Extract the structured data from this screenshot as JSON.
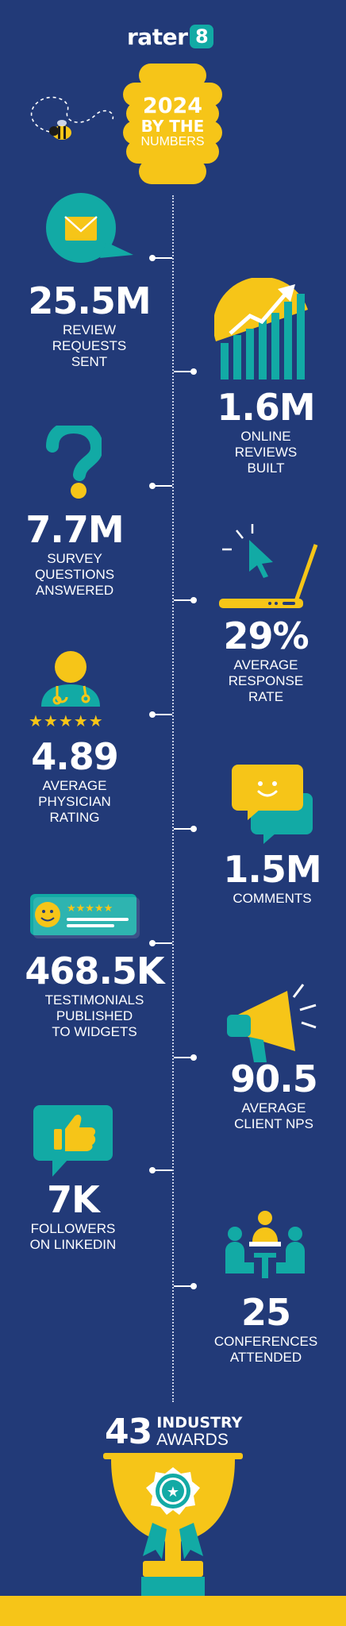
{
  "brand": {
    "name": "rater",
    "mark": "8"
  },
  "hero": {
    "line1": "2024",
    "line2": "BY THE",
    "line3": "NUMBERS"
  },
  "stats": [
    {
      "value": "25.5M",
      "label1": "REVIEW",
      "label2": "REQUESTS",
      "label3": "SENT"
    },
    {
      "value": "1.6M",
      "label1": "ONLINE",
      "label2": "REVIEWS",
      "label3": "BUILT"
    },
    {
      "value": "7.7M",
      "label1": "SURVEY",
      "label2": "QUESTIONS",
      "label3": "ANSWERED"
    },
    {
      "value": "29%",
      "label1": "AVERAGE",
      "label2": "RESPONSE",
      "label3": "RATE"
    },
    {
      "value": "4.89",
      "label1": "AVERAGE",
      "label2": "PHYSICIAN",
      "label3": "RATING"
    },
    {
      "value": "1.5M",
      "label1": "COMMENTS"
    },
    {
      "value": "468.5K",
      "label1": "TESTIMONIALS",
      "label2": "PUBLISHED",
      "label3": "TO WIDGETS"
    },
    {
      "value": "90.5",
      "label1": "AVERAGE",
      "label2": "CLIENT NPS"
    },
    {
      "value": "7K",
      "label1": "FOLLOWERS",
      "label2": "ON LINKEDIN"
    },
    {
      "value": "25",
      "label1": "CONFERENCES",
      "label2": "ATTENDED"
    }
  ],
  "awards": {
    "value": "43",
    "line1": "INDUSTRY",
    "line2": "AWARDS"
  },
  "colors": {
    "background": "#223a78",
    "accent_yellow": "#f6c518",
    "accent_teal": "#12aaa5",
    "text": "#ffffff"
  },
  "icons": [
    "bee-icon",
    "envelope-chat-icon",
    "rising-bar-chart-icon",
    "question-mark-icon",
    "laptop-cursor-icon",
    "physician-icon",
    "five-stars-icon",
    "chat-bubbles-icon",
    "testimonial-card-icon",
    "megaphone-icon",
    "thumbs-up-icon",
    "meeting-people-icon",
    "trophy-icon"
  ]
}
